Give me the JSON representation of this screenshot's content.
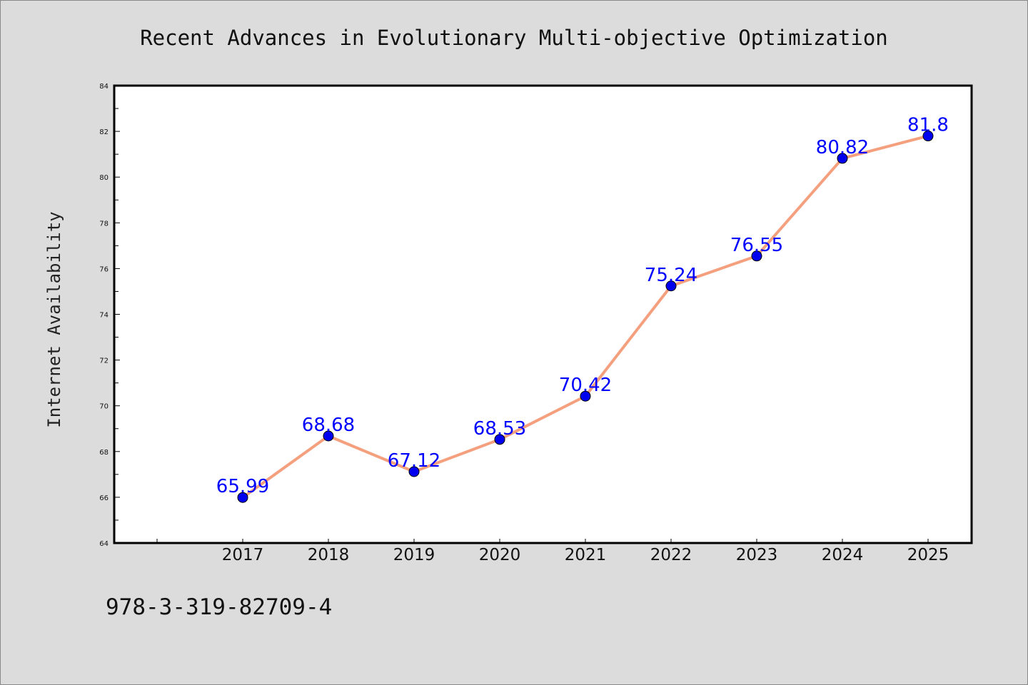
{
  "chart_data": {
    "type": "line",
    "title": "Recent Advances in Evolutionary Multi-objective Optimization",
    "xlabel": "",
    "ylabel": "Internet Availability",
    "categories": [
      "2017",
      "2018",
      "2019",
      "2020",
      "2021",
      "2022",
      "2023",
      "2024",
      "2025"
    ],
    "series": [
      {
        "values": [
          65.99,
          68.68,
          67.12,
          68.53,
          70.42,
          75.24,
          76.55,
          80.82,
          81.8
        ],
        "labels": [
          "65.99",
          "68.68",
          "67.12",
          "68.53",
          "70.42",
          "75.24",
          "76.55",
          "80.82",
          "81.8"
        ]
      }
    ],
    "ylim": [
      64,
      84
    ],
    "yticks": [
      "64",
      "66",
      "68",
      "70",
      "72",
      "74",
      "76",
      "78",
      "80",
      "82",
      "84"
    ],
    "grid": false,
    "legend": "none",
    "colors": {
      "line": "#f4a07e",
      "marker": "#0000ee",
      "marker_edge": "#000000",
      "data_label": "#0000ff",
      "background": "#dcdcdc",
      "plot_background": "#ffffff"
    }
  },
  "footer": {
    "isbn": "978-3-319-82709-4"
  }
}
